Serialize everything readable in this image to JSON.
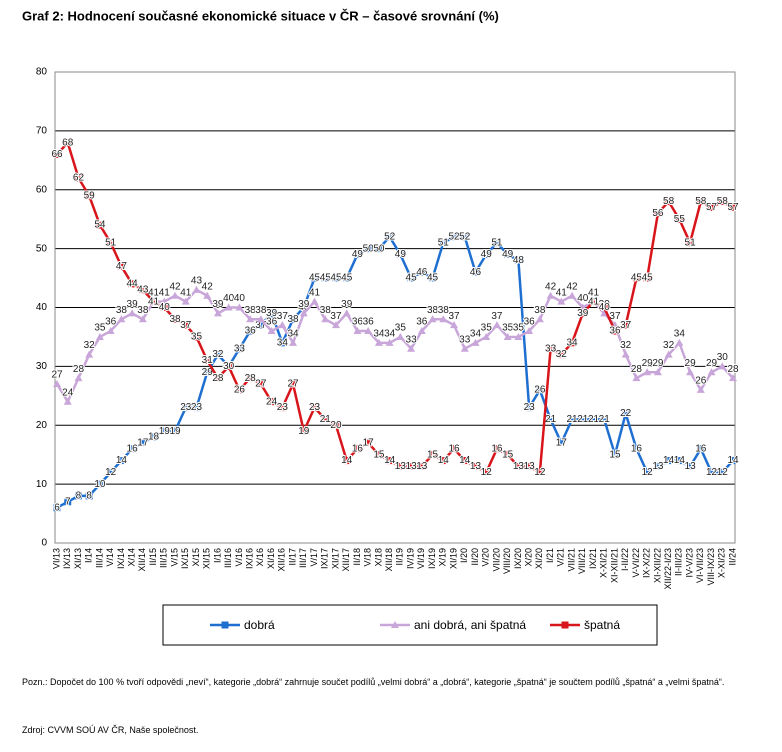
{
  "chart_data": {
    "type": "line",
    "title": "Graf 2: Hodnocení současné ekonomické situace v ČR – časové srovnání (%)",
    "categories": [
      "VI/13",
      "IX/13",
      "XI/13",
      "I/14",
      "III/14",
      "V/14",
      "IX/14",
      "X/14",
      "XII/14",
      "II/15",
      "III/15",
      "V/15",
      "IX/15",
      "X/15",
      "XI/15",
      "I/16",
      "III/16",
      "V/16",
      "IX/16",
      "X/16",
      "XI/16",
      "XII/16",
      "II/17",
      "III/17",
      "V/17",
      "IX/17",
      "XI/17",
      "XII/17",
      "II/18",
      "V/18",
      "X/18",
      "XII/18",
      "II/19",
      "IV/19",
      "VI/19",
      "IX/19",
      "X/19",
      "XI/19",
      "I/20",
      "II/20",
      "V/20",
      "VII/20",
      "VIII/20",
      "IX/20",
      "X/20",
      "XI/20",
      "I/21",
      "V/21",
      "VII/21",
      "VIII/21",
      "IX/21",
      "X-XI/21",
      "XI-XII/21",
      "I-II/22",
      "V-VI/22",
      "IX-X/22",
      "XI-XII/22",
      "XII/22-I/23",
      "II-III/23",
      "IV-V/23",
      "VI-VII/23",
      "VIII-IX/23",
      "X-XI/23",
      "II/24"
    ],
    "series": [
      {
        "name": "dobrá",
        "color": "#1f6fd1",
        "marker": "square",
        "values": [
          6,
          7,
          8,
          8,
          10,
          12,
          14,
          16,
          17,
          18,
          19,
          19,
          23,
          23,
          29,
          32,
          30,
          33,
          36,
          37,
          39,
          34,
          38,
          40,
          45,
          45,
          45,
          45,
          49,
          50,
          50,
          52,
          49,
          45,
          46,
          45,
          51,
          52,
          52,
          46,
          49,
          51,
          49,
          48,
          23,
          26,
          21,
          17,
          21,
          21,
          21,
          21,
          15,
          22,
          16,
          12,
          13,
          14,
          14,
          13,
          16,
          12,
          12,
          14
        ]
      },
      {
        "name": "ani dobrá, ani špatná",
        "color": "#c9a6d9",
        "marker": "triangle",
        "values": [
          27,
          24,
          28,
          32,
          35,
          36,
          38,
          39,
          38,
          41,
          41,
          42,
          41,
          43,
          42,
          39,
          40,
          40,
          38,
          38,
          36,
          37,
          34,
          39,
          41,
          38,
          37,
          39,
          36,
          36,
          34,
          34,
          35,
          33,
          36,
          38,
          38,
          37,
          33,
          34,
          35,
          37,
          35,
          35,
          36,
          38,
          42,
          41,
          42,
          40,
          41,
          39,
          37,
          32,
          28,
          29,
          29,
          32,
          34,
          29,
          26,
          29,
          30,
          28
        ]
      },
      {
        "name": "špatná",
        "color": "#d8151b",
        "marker": "square",
        "values": [
          66,
          68,
          62,
          59,
          54,
          51,
          47,
          44,
          43,
          41,
          40,
          38,
          37,
          35,
          31,
          28,
          30,
          26,
          28,
          27,
          24,
          23,
          27,
          19,
          23,
          21,
          20,
          14,
          16,
          17,
          15,
          14,
          13,
          13,
          13,
          15,
          14,
          16,
          14,
          13,
          12,
          16,
          15,
          13,
          13,
          12,
          33,
          32,
          34,
          39,
          41,
          40,
          36,
          37,
          45,
          45,
          56,
          58,
          55,
          51,
          58,
          57,
          58,
          57
        ]
      }
    ],
    "ylim": [
      0,
      80
    ],
    "yticks": [
      0,
      10,
      20,
      30,
      40,
      50,
      60,
      70,
      80
    ],
    "grid": true,
    "note": "Pozn.: Dopočet do 100 % tvoří odpovědi „neví“, kategorie „dobrá“ zahrnuje součet podílů „velmi dobrá“ a „dobrá“, kategorie „špatná“ je součtem podílů „špatná“ a „velmi špatná“.",
    "source": "Zdroj: CVVM SOÚ AV ČR, Naše společnost."
  }
}
